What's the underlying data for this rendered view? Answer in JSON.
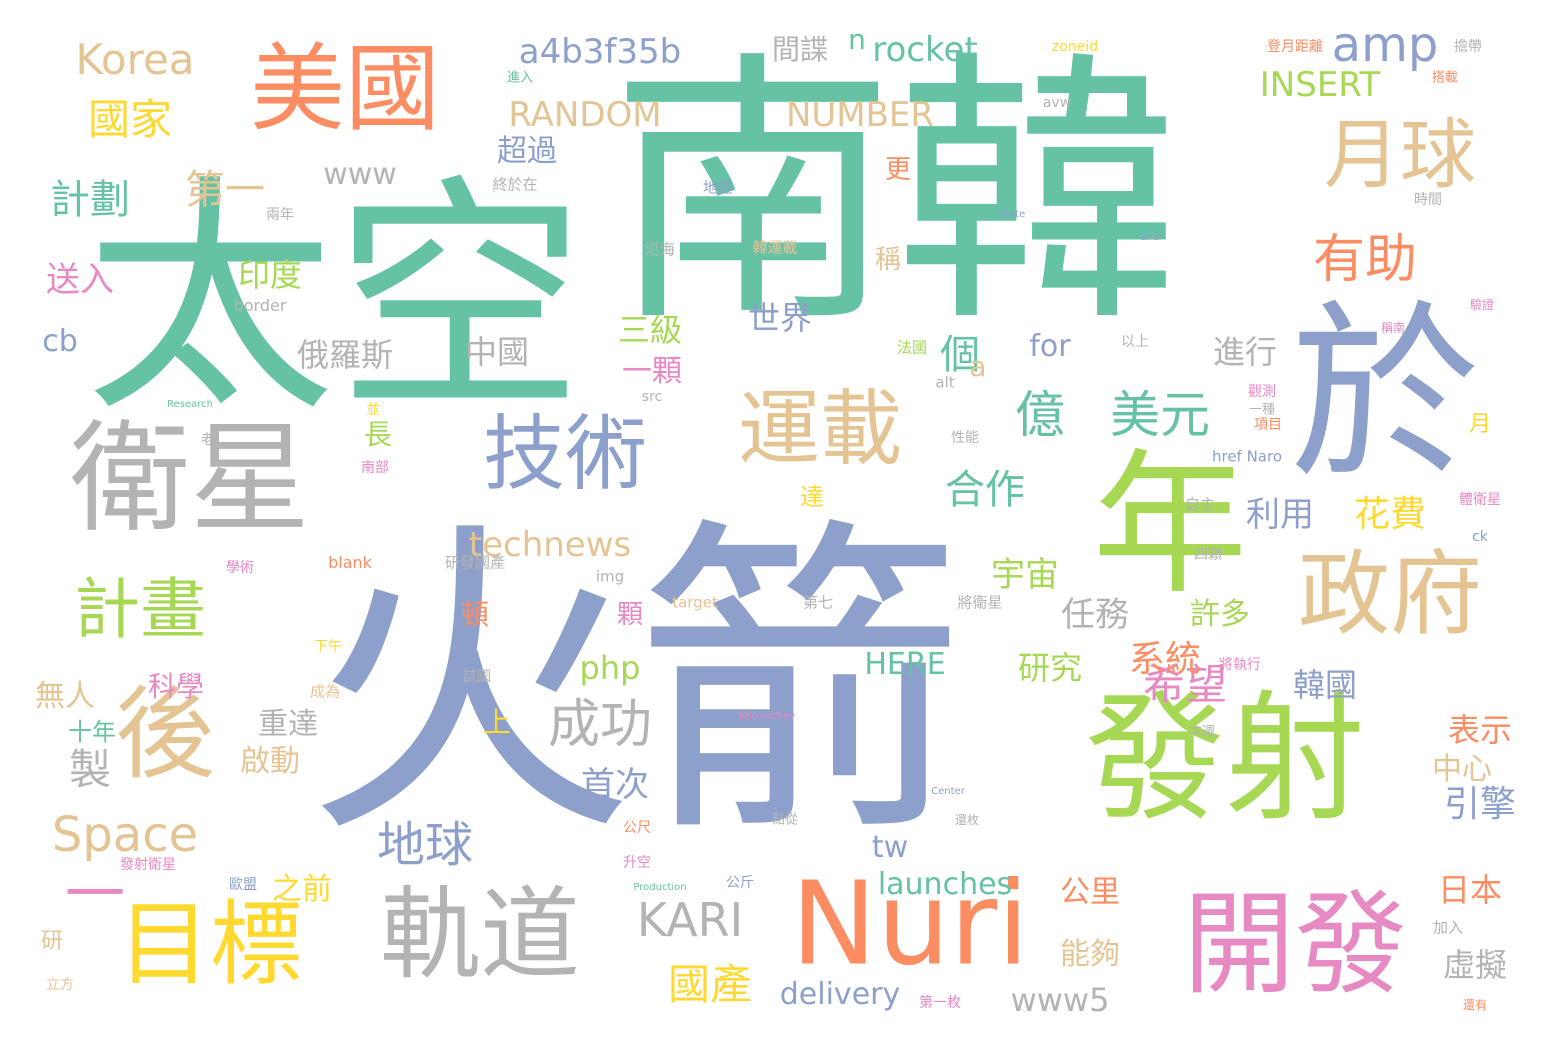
{
  "palette": {
    "teal": "#66c2a5",
    "orange": "#fc8d62",
    "blue": "#8da0cb",
    "pink": "#e78ac3",
    "green": "#a6d854",
    "yellow": "#ffd92f",
    "tan": "#e5c494",
    "grey": "#b3b3b3"
  },
  "words": [
    {
      "text": "火箭",
      "color": "blue",
      "weight": 100
    },
    {
      "text": "南韓",
      "color": "teal",
      "weight": 86
    },
    {
      "text": "太空",
      "color": "teal",
      "weight": 75
    },
    {
      "text": "發射",
      "color": "green",
      "weight": 52
    },
    {
      "text": "於",
      "color": "blue",
      "weight": 50
    },
    {
      "text": "年",
      "color": "green",
      "weight": 45
    },
    {
      "text": "衛星",
      "color": "grey",
      "weight": 44
    },
    {
      "text": "開發",
      "color": "pink",
      "weight": 40
    },
    {
      "text": "軌道",
      "color": "grey",
      "weight": 38
    },
    {
      "text": "Nuri",
      "color": "orange",
      "weight": 38
    },
    {
      "text": "美國",
      "color": "orange",
      "weight": 36
    },
    {
      "text": "政府",
      "color": "tan",
      "weight": 36
    },
    {
      "text": "目標",
      "color": "yellow",
      "weight": 34
    },
    {
      "text": "後",
      "color": "tan",
      "weight": 33
    },
    {
      "text": "技術",
      "color": "blue",
      "weight": 30
    },
    {
      "text": "運載",
      "color": "tan",
      "weight": 30
    },
    {
      "text": "月球",
      "color": "tan",
      "weight": 28
    },
    {
      "text": "計畫",
      "color": "green",
      "weight": 24
    },
    {
      "text": "一",
      "color": "pink",
      "weight": 20
    },
    {
      "text": "有助",
      "color": "orange",
      "weight": 20
    },
    {
      "text": "成功",
      "color": "grey",
      "weight": 18
    },
    {
      "text": "amp",
      "color": "blue",
      "weight": 16
    },
    {
      "text": "地球",
      "color": "blue",
      "weight": 16
    },
    {
      "text": "KARI",
      "color": "grey",
      "weight": 16
    },
    {
      "text": "Space",
      "color": "tan",
      "weight": 16
    },
    {
      "text": "美元",
      "color": "teal",
      "weight": 16
    },
    {
      "text": "億",
      "color": "teal",
      "weight": 15
    },
    {
      "text": "國家",
      "color": "yellow",
      "weight": 13
    },
    {
      "text": "Korea",
      "color": "tan",
      "weight": 13
    },
    {
      "text": "製",
      "color": "grey",
      "weight": 13
    },
    {
      "text": "希望",
      "color": "pink",
      "weight": 13
    },
    {
      "text": "國產",
      "color": "yellow",
      "weight": 13
    },
    {
      "text": "計劃",
      "color": "teal",
      "weight": 12
    },
    {
      "text": "第一",
      "color": "tan",
      "weight": 12
    },
    {
      "text": "合作",
      "color": "teal",
      "weight": 12
    },
    {
      "text": "個",
      "color": "teal",
      "weight": 12
    },
    {
      "text": "a4b3f35b",
      "color": "blue",
      "weight": 11
    },
    {
      "text": "rocket",
      "color": "teal",
      "weight": 11
    },
    {
      "text": "RANDOM",
      "color": "tan",
      "weight": 11
    },
    {
      "text": "NUMBER",
      "color": "tan",
      "weight": 11
    },
    {
      "text": "INSERT",
      "color": "green",
      "weight": 11
    },
    {
      "text": "花費",
      "color": "yellow",
      "weight": 11
    },
    {
      "text": "系統",
      "color": "orange",
      "weight": 11
    },
    {
      "text": "引擎",
      "color": "blue",
      "weight": 11
    },
    {
      "text": "technews",
      "color": "tan",
      "weight": 11
    },
    {
      "text": "送入",
      "color": "pink",
      "weight": 10
    },
    {
      "text": "www",
      "color": "grey",
      "weight": 10
    },
    {
      "text": "俄羅斯",
      "color": "grey",
      "weight": 10
    },
    {
      "text": "印度",
      "color": "green",
      "weight": 10
    },
    {
      "text": "首次",
      "color": "blue",
      "weight": 10
    },
    {
      "text": "利用",
      "color": "blue",
      "weight": 10
    },
    {
      "text": "宇宙",
      "color": "green",
      "weight": 10
    },
    {
      "text": "任務",
      "color": "grey",
      "weight": 10
    },
    {
      "text": "www5",
      "color": "grey",
      "weight": 10
    },
    {
      "text": "delivery",
      "color": "blue",
      "weight": 10
    },
    {
      "text": "launches",
      "color": "teal",
      "weight": 10
    },
    {
      "text": "HERE",
      "color": "teal",
      "weight": 10
    },
    {
      "text": "php",
      "color": "green",
      "weight": 10
    },
    {
      "text": "虛擬",
      "color": "grey",
      "weight": 10
    },
    {
      "text": "日本",
      "color": "orange",
      "weight": 10
    },
    {
      "text": "研究",
      "color": "green",
      "weight": 10
    },
    {
      "text": "表示",
      "color": "orange",
      "weight": 10
    },
    {
      "text": "韓國",
      "color": "blue",
      "weight": 10
    },
    {
      "text": "世界",
      "color": "blue",
      "weight": 10
    },
    {
      "text": "三級",
      "color": "green",
      "weight": 10
    },
    {
      "text": "進行",
      "color": "grey",
      "weight": 10
    },
    {
      "text": "中國",
      "color": "grey",
      "weight": 10
    },
    {
      "text": "間諜",
      "color": "grey",
      "weight": 8
    },
    {
      "text": "n",
      "color": "teal",
      "weight": 9
    },
    {
      "text": "超過",
      "color": "blue",
      "weight": 9
    },
    {
      "text": "cb",
      "color": "blue",
      "weight": 9
    },
    {
      "text": "for",
      "color": "blue",
      "weight": 9
    },
    {
      "text": "a",
      "color": "tan",
      "weight": 9
    },
    {
      "text": "一顆",
      "color": "pink",
      "weight": 9
    },
    {
      "text": "長",
      "color": "green",
      "weight": 9
    },
    {
      "text": "無人",
      "color": "tan",
      "weight": 9
    },
    {
      "text": "十年",
      "color": "teal",
      "weight": 8
    },
    {
      "text": "科學",
      "color": "pink",
      "weight": 9
    },
    {
      "text": "重達",
      "color": "grey",
      "weight": 9
    },
    {
      "text": "啟動",
      "color": "tan",
      "weight": 9
    },
    {
      "text": "之前",
      "color": "yellow",
      "weight": 9
    },
    {
      "text": "公里",
      "color": "orange",
      "weight": 9
    },
    {
      "text": "能夠",
      "color": "tan",
      "weight": 9
    },
    {
      "text": "許多",
      "color": "green",
      "weight": 9
    },
    {
      "text": "中心",
      "color": "tan",
      "weight": 9
    },
    {
      "text": "tw",
      "color": "blue",
      "weight": 9
    },
    {
      "text": "上",
      "color": "yellow",
      "weight": 9
    },
    {
      "text": "頓",
      "color": "orange",
      "weight": 8
    },
    {
      "text": "顆",
      "color": "pink",
      "weight": 8
    },
    {
      "text": "達",
      "color": "yellow",
      "weight": 8
    },
    {
      "text": "稱",
      "color": "tan",
      "weight": 8
    },
    {
      "text": "更",
      "color": "orange",
      "weight": 8
    },
    {
      "text": "月",
      "color": "yellow",
      "weight": 7
    },
    {
      "text": "研",
      "color": "tan",
      "weight": 7
    },
    {
      "text": "終於在",
      "color": "grey",
      "weight": 5
    },
    {
      "text": "地區",
      "color": "blue",
      "weight": 5
    },
    {
      "text": "法國",
      "color": "green",
      "weight": 5
    },
    {
      "text": "alt",
      "color": "grey",
      "weight": 5
    },
    {
      "text": "src",
      "color": "grey",
      "weight": 5
    },
    {
      "text": "img",
      "color": "grey",
      "weight": 5
    },
    {
      "text": "blank",
      "color": "orange",
      "weight": 5
    },
    {
      "text": "target",
      "color": "tan",
      "weight": 5
    },
    {
      "text": "border",
      "color": "grey",
      "weight": 5
    },
    {
      "text": "zoneid",
      "color": "yellow",
      "weight": 5
    },
    {
      "text": "avw",
      "color": "grey",
      "weight": 5
    },
    {
      "text": "ck",
      "color": "blue",
      "weight": 5
    },
    {
      "text": "href Naro",
      "color": "blue",
      "weight": 5
    },
    {
      "text": "研發國產",
      "color": "grey",
      "weight": 5
    },
    {
      "text": "將衛星",
      "color": "grey",
      "weight": 5
    },
    {
      "text": "第七",
      "color": "grey",
      "weight": 5
    },
    {
      "text": "四顆",
      "color": "grey",
      "weight": 5
    },
    {
      "text": "自主",
      "color": "grey",
      "weight": 5
    },
    {
      "text": "將執行",
      "color": "pink",
      "weight": 5
    },
    {
      "text": "加入",
      "color": "grey",
      "weight": 5
    },
    {
      "text": "第一枚",
      "color": "pink",
      "weight": 5
    },
    {
      "text": "公斤",
      "color": "blue",
      "weight": 5
    },
    {
      "text": "公尺",
      "color": "orange",
      "weight": 5
    },
    {
      "text": "升空",
      "color": "pink",
      "weight": 5
    },
    {
      "text": "歐盟",
      "color": "blue",
      "weight": 5
    },
    {
      "text": "成為",
      "color": "tan",
      "weight": 5
    },
    {
      "text": "學術",
      "color": "pink",
      "weight": 5
    },
    {
      "text": "該國",
      "color": "grey",
      "weight": 5
    },
    {
      "text": "下午",
      "color": "yellow",
      "weight": 5
    },
    {
      "text": "沿海",
      "color": "grey",
      "weight": 5
    },
    {
      "text": "韓運載",
      "color": "tan",
      "weight": 5
    },
    {
      "text": "以上",
      "color": "grey",
      "weight": 5
    },
    {
      "text": "性能",
      "color": "grey",
      "weight": 5
    },
    {
      "text": "南部",
      "color": "pink",
      "weight": 5
    },
    {
      "text": "並",
      "color": "yellow",
      "weight": 5
    },
    {
      "text": "老",
      "color": "grey",
      "weight": 5
    },
    {
      "text": "兩年",
      "color": "grey",
      "weight": 5
    },
    {
      "text": "發射衛星",
      "color": "pink",
      "weight": 5
    },
    {
      "text": "立方",
      "color": "tan",
      "weight": 5
    },
    {
      "text": "項目",
      "color": "orange",
      "weight": 5
    },
    {
      "text": "觀測",
      "color": "pink",
      "weight": 5
    },
    {
      "text": "一種",
      "color": "grey",
      "weight": 5
    },
    {
      "text": "體衛星",
      "color": "pink",
      "weight": 5
    },
    {
      "text": "時間",
      "color": "grey",
      "weight": 5
    },
    {
      "text": "進入",
      "color": "teal",
      "weight": 5
    },
    {
      "text": "搭載",
      "color": "orange",
      "weight": 5
    },
    {
      "text": "擔帶",
      "color": "grey",
      "weight": 5
    },
    {
      "text": "登月距離",
      "color": "orange",
      "weight": 5
    },
    {
      "text": "驗證",
      "color": "pink",
      "weight": 5
    },
    {
      "text": "稱南",
      "color": "pink",
      "weight": 5
    },
    {
      "text": "還有",
      "color": "orange",
      "weight": 5
    },
    {
      "text": "點從",
      "color": "grey",
      "weight": 5
    },
    {
      "text": "還枚",
      "color": "grey",
      "weight": 5
    },
    {
      "text": "本週",
      "color": "grey",
      "weight": 5
    },
    {
      "text": "Research",
      "color": "teal",
      "weight": 3
    },
    {
      "text": "Khrunichev",
      "color": "pink",
      "weight": 3
    },
    {
      "text": "Production",
      "color": "teal",
      "weight": 3
    },
    {
      "text": "Center",
      "color": "blue",
      "weight": 3
    },
    {
      "text": "State",
      "color": "blue",
      "weight": 3
    },
    {
      "text": "and",
      "color": "blue",
      "weight": 3
    }
  ]
}
